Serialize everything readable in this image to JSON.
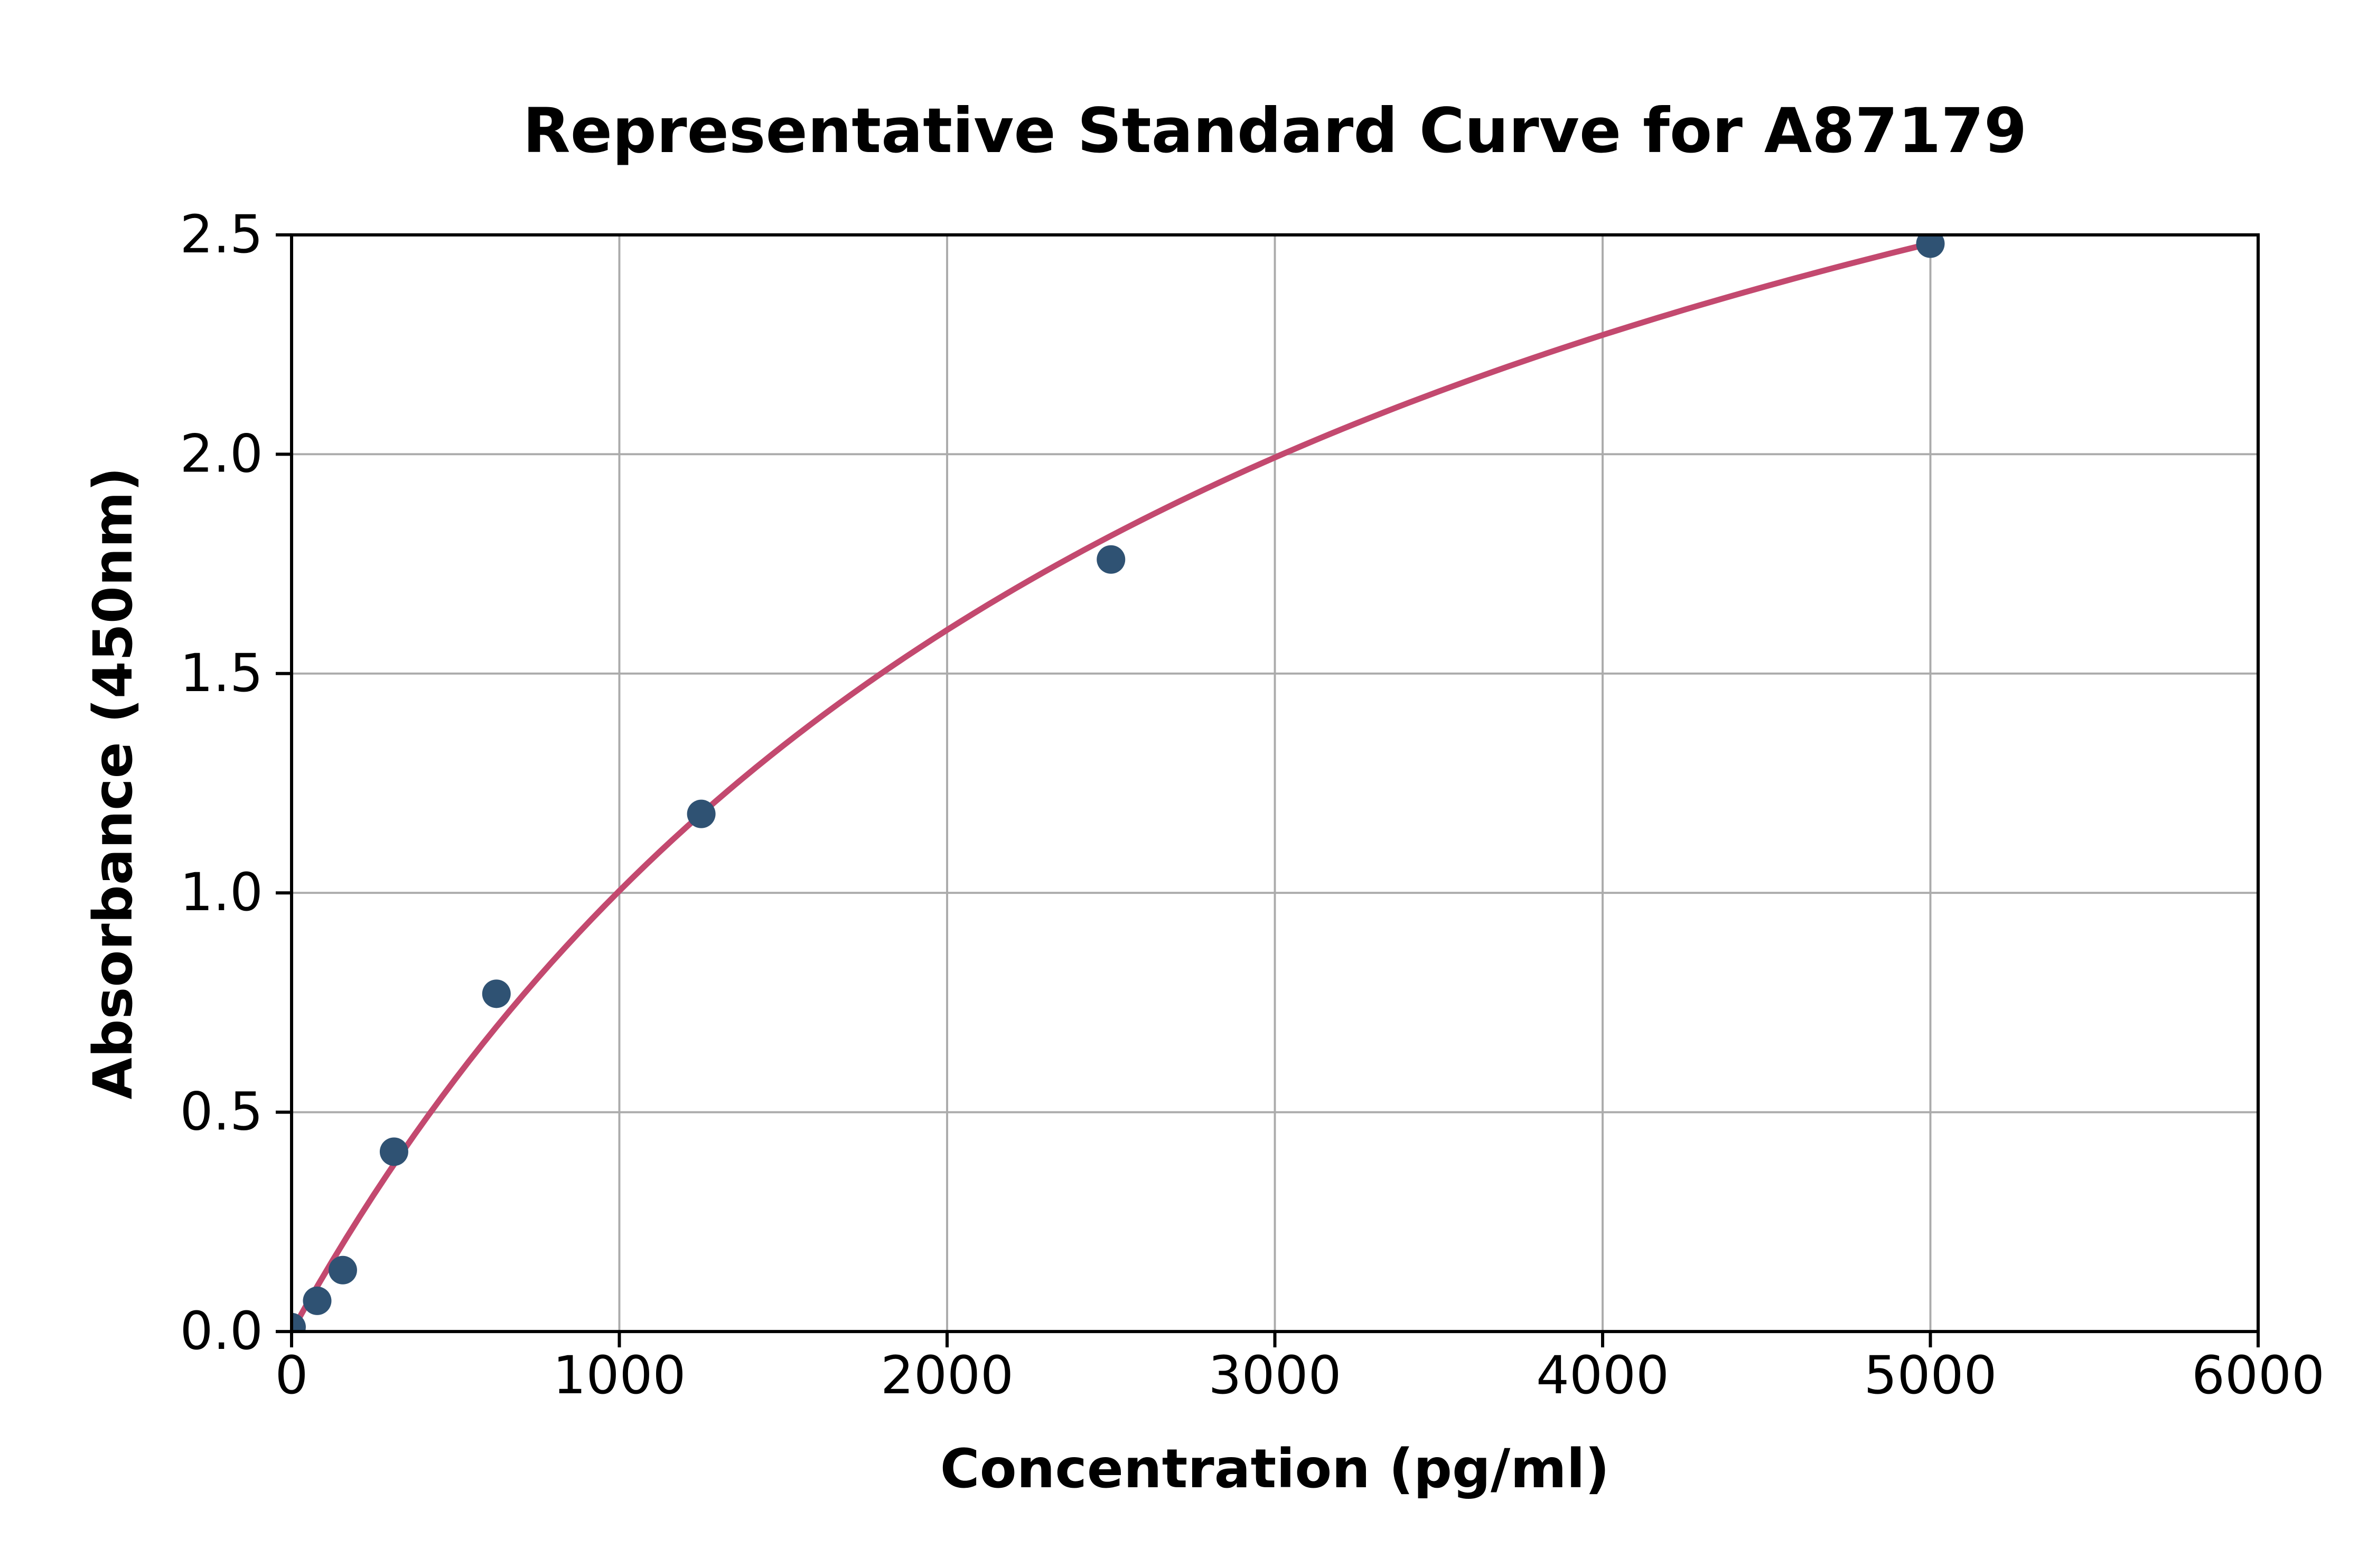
{
  "chart_data": {
    "type": "scatter",
    "title": "Representative Standard Curve for A87179",
    "xlabel": "Concentration (pg/ml)",
    "ylabel": "Absorbance (450nm)",
    "xlim": [
      0,
      6000
    ],
    "ylim": [
      0,
      2.5
    ],
    "grid": true,
    "legend_position": "none",
    "xticks": [
      {
        "value": 0,
        "label": "0"
      },
      {
        "value": 1000,
        "label": "1000"
      },
      {
        "value": 2000,
        "label": "2000"
      },
      {
        "value": 3000,
        "label": "3000"
      },
      {
        "value": 4000,
        "label": "4000"
      },
      {
        "value": 5000,
        "label": "5000"
      },
      {
        "value": 6000,
        "label": "6000"
      }
    ],
    "yticks": [
      {
        "value": 0.0,
        "label": "0.0"
      },
      {
        "value": 0.5,
        "label": "0.5"
      },
      {
        "value": 1.0,
        "label": "1.0"
      },
      {
        "value": 1.5,
        "label": "1.5"
      },
      {
        "value": 2.0,
        "label": "2.0"
      },
      {
        "value": 2.5,
        "label": "2.5"
      }
    ],
    "series": [
      {
        "name": "standards",
        "marker": "circle",
        "points": [
          {
            "x": 0,
            "y": 0.01
          },
          {
            "x": 78.13,
            "y": 0.07
          },
          {
            "x": 156.25,
            "y": 0.14
          },
          {
            "x": 312.5,
            "y": 0.41
          },
          {
            "x": 625,
            "y": 0.77
          },
          {
            "x": 1250,
            "y": 1.18
          },
          {
            "x": 2500,
            "y": 1.76
          },
          {
            "x": 5000,
            "y": 2.48
          }
        ]
      }
    ],
    "fit_curve": {
      "name": "fitted standard curve",
      "model": "saturation y = Vmax*x/(Km+x)",
      "Vmax": 3.92,
      "Km": 2902,
      "x_start": 0,
      "x_end": 5000
    },
    "colors": {
      "point": "#2F5273",
      "curve": "#C3496F",
      "grid": "#ABABAB",
      "axis": "#000000",
      "background": "#FFFFFF"
    }
  }
}
